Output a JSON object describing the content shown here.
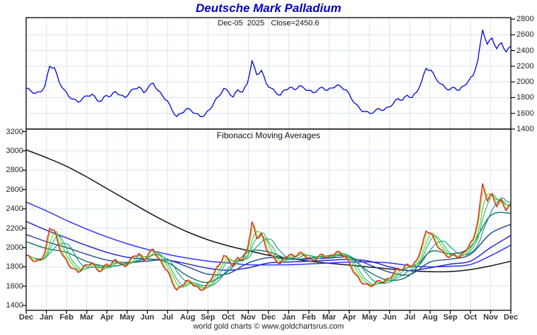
{
  "title": "Deutsche Mark Palladium",
  "subtitle": "Dec-05  2025   Close=2450.6",
  "panel2_title": "Fibonacci Moving Averages",
  "footer": "world gold charts © www.goldchartsrus.com",
  "colors": {
    "title_blue": "#0000cc",
    "price_top": "#0000e0",
    "price_bottom_red": "#e02020",
    "grid": "#d7e5f3",
    "frame": "#000000",
    "fib_fast_greens": [
      "#9fd327",
      "#4fc938",
      "#22b96a",
      "#129482"
    ],
    "ma34_teal": "#1e7a6e",
    "ma55_navy": "#2d5188",
    "ma89_blue": "#2727cc",
    "ma144_blue": "#3333ff",
    "ma233_black": "#151515"
  },
  "price_weekly": [
    1920,
    1885,
    1855,
    1870,
    1950,
    2200,
    2180,
    2000,
    1905,
    1820,
    1782,
    1742,
    1790,
    1822,
    1843,
    1772,
    1756,
    1830,
    1820,
    1878,
    1832,
    1800,
    1868,
    1912,
    1938,
    1862,
    1938,
    1984,
    1892,
    1822,
    1760,
    1642,
    1560,
    1600,
    1658,
    1640,
    1598,
    1560,
    1582,
    1648,
    1748,
    1820,
    1918,
    1872,
    1808,
    1900,
    1872,
    1978,
    2268,
    2092,
    2148,
    1982,
    1922,
    1868,
    1832,
    1900,
    1930,
    1902,
    1948,
    1922,
    1892,
    1862,
    1900,
    1930,
    1892,
    1922,
    1958,
    1932,
    1900,
    1800,
    1722,
    1650,
    1622,
    1600,
    1622,
    1660,
    1640,
    1680,
    1722,
    1788,
    1770,
    1830,
    1800,
    1870,
    2000,
    2172,
    2150,
    2050,
    1978,
    1930,
    1900,
    1930,
    1892,
    1950,
    2012,
    2082,
    2282,
    2662,
    2480,
    2558,
    2422,
    2498,
    2382,
    2452
  ],
  "x_labels": [
    "Dec",
    "Jan",
    "Feb",
    "Mar",
    "Apr",
    "May",
    "Jun",
    "Jul",
    "Aug",
    "Sep",
    "Oct",
    "Nov",
    "Dec",
    "Jan",
    "Feb",
    "Mar",
    "Apr",
    "May",
    "Jun",
    "Jul",
    "Aug",
    "Sep",
    "Oct",
    "Nov",
    "Dec"
  ],
  "chart_data": [
    {
      "type": "line",
      "panel": "top",
      "title": "Deutsche Mark Palladium",
      "annotation": "Dec-05  2025   Close=2450.6",
      "ylim": [
        1400,
        2800
      ],
      "y_ticks": [
        2800,
        2600,
        2400,
        2200,
        2000,
        1800,
        1600,
        1400
      ],
      "y_axis_side": "right",
      "grid": true,
      "legend": "none",
      "x_span_months": [
        0,
        24
      ],
      "series": [
        {
          "name": "dm-palladium-close",
          "color": "#0000e0",
          "values_ref": "price_weekly"
        }
      ]
    },
    {
      "type": "line",
      "panel": "bottom",
      "title": "Fibonacci Moving Averages",
      "ylim": [
        1400,
        3200
      ],
      "y_ticks": [
        3200,
        3000,
        2800,
        2600,
        2400,
        2200,
        2000,
        1800,
        1600,
        1400
      ],
      "y_axis_side": "left",
      "grid": true,
      "legend": "none",
      "x_span_months": [
        0,
        24
      ],
      "series": [
        {
          "name": "price-fast",
          "color": "#e02020",
          "values_ref": "price_weekly"
        },
        {
          "name": "fib-ma-fast-set",
          "computed_from": "price_weekly",
          "windows": [
            2,
            4,
            6,
            10
          ],
          "colors": [
            "#9fd327",
            "#4fc938",
            "#22b96a",
            "#129482"
          ]
        },
        {
          "name": "fib-ma-34",
          "color": "#1e7a6e",
          "monthly_values": [
            2060,
            1990,
            1950,
            1855,
            1805,
            1830,
            1880,
            1845,
            1705,
            1640,
            1755,
            1955,
            1955,
            1880,
            1890,
            1915,
            1900,
            1745,
            1660,
            1715,
            1955,
            1935,
            2005,
            2330,
            2355
          ]
        },
        {
          "name": "fib-ma-55",
          "color": "#2d5188",
          "monthly_values": [
            2135,
            2060,
            2000,
            1930,
            1870,
            1845,
            1860,
            1870,
            1800,
            1725,
            1730,
            1840,
            1895,
            1880,
            1880,
            1890,
            1900,
            1820,
            1745,
            1720,
            1850,
            1880,
            1930,
            2145,
            2240
          ]
        },
        {
          "name": "fib-ma-89",
          "color": "#2727cc",
          "monthly_values": [
            2270,
            2180,
            2100,
            2020,
            1950,
            1900,
            1880,
            1870,
            1830,
            1785,
            1765,
            1790,
            1840,
            1850,
            1858,
            1868,
            1878,
            1858,
            1800,
            1762,
            1790,
            1828,
            1860,
            2000,
            2125
          ]
        },
        {
          "name": "fib-ma-144",
          "color": "#3333ff",
          "monthly_values": [
            2470,
            2380,
            2280,
            2190,
            2110,
            2040,
            1980,
            1930,
            1890,
            1860,
            1840,
            1822,
            1820,
            1822,
            1830,
            1840,
            1850,
            1850,
            1840,
            1812,
            1800,
            1806,
            1825,
            1915,
            2025
          ]
        },
        {
          "name": "fib-ma-233",
          "color": "#151515",
          "monthly_values": [
            3010,
            2930,
            2840,
            2730,
            2610,
            2490,
            2370,
            2258,
            2160,
            2080,
            2018,
            1968,
            1920,
            1888,
            1860,
            1838,
            1818,
            1798,
            1778,
            1760,
            1750,
            1752,
            1772,
            1810,
            1858
          ]
        }
      ]
    }
  ]
}
